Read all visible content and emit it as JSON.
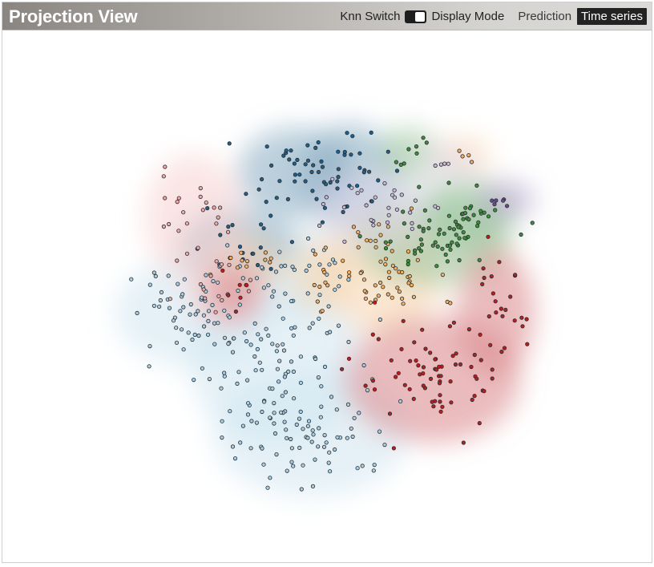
{
  "panel": {
    "title": "Projection View",
    "knn_label": "Knn Switch",
    "knn_on": true,
    "display_mode_label": "Display Mode",
    "modes": [
      "Prediction",
      "Time series"
    ],
    "active_mode": "Time series"
  },
  "chart_data": {
    "type": "scatter",
    "title": "",
    "xlabel": "",
    "ylabel": "",
    "xlim": [
      0,
      100
    ],
    "ylim": [
      0,
      100
    ],
    "axes_visible": false,
    "grid": false,
    "density_contours": true,
    "series": [
      {
        "color": "#a9cfe6",
        "clusters": [
          {
            "cx": 21,
            "cy": 48,
            "sx": 7,
            "sy": 5,
            "n": 55
          },
          {
            "cx": 38,
            "cy": 37,
            "sx": 8,
            "sy": 8,
            "n": 90
          },
          {
            "cx": 45,
            "cy": 21,
            "sx": 9,
            "sy": 6,
            "n": 70
          },
          {
            "cx": 41,
            "cy": 57,
            "sx": 5,
            "sy": 4,
            "n": 30
          }
        ]
      },
      {
        "color": "#1f5f8b",
        "clusters": [
          {
            "cx": 42,
            "cy": 79,
            "sx": 5,
            "sy": 4,
            "n": 35
          },
          {
            "cx": 53,
            "cy": 78,
            "sx": 4,
            "sy": 5,
            "n": 30
          },
          {
            "cx": 30,
            "cy": 63,
            "sx": 5,
            "sy": 3,
            "n": 18
          }
        ]
      },
      {
        "color": "#f3b066",
        "clusters": [
          {
            "cx": 60,
            "cy": 57,
            "sx": 5,
            "sy": 6,
            "n": 55
          },
          {
            "cx": 32,
            "cy": 59,
            "sx": 3,
            "sy": 2,
            "n": 12
          },
          {
            "cx": 47,
            "cy": 56,
            "sx": 2,
            "sy": 3,
            "n": 10
          },
          {
            "cx": 76,
            "cy": 83,
            "sx": 2,
            "sy": 1,
            "n": 4
          }
        ]
      },
      {
        "color": "#3e8e41",
        "clusters": [
          {
            "cx": 70,
            "cy": 64,
            "sx": 7,
            "sy": 4,
            "n": 55
          },
          {
            "cx": 77,
            "cy": 70,
            "sx": 4,
            "sy": 3,
            "n": 20
          },
          {
            "cx": 65,
            "cy": 83,
            "sx": 2,
            "sy": 2,
            "n": 8
          }
        ]
      },
      {
        "color": "#c9b9dc",
        "clusters": [
          {
            "cx": 58,
            "cy": 71,
            "sx": 5,
            "sy": 3,
            "n": 30
          },
          {
            "cx": 73,
            "cy": 81,
            "sx": 2,
            "sy": 1,
            "n": 4
          }
        ]
      },
      {
        "color": "#6b4797",
        "clusters": [
          {
            "cx": 85,
            "cy": 73,
            "sx": 2,
            "sy": 1,
            "n": 6
          }
        ]
      },
      {
        "color": "#f1a8a8",
        "clusters": [
          {
            "cx": 21,
            "cy": 69,
            "sx": 4,
            "sy": 6,
            "n": 25
          },
          {
            "cx": 28,
            "cy": 53,
            "sx": 3,
            "sy": 3,
            "n": 12
          }
        ]
      },
      {
        "color": "#b81e24",
        "clusters": [
          {
            "cx": 70,
            "cy": 33,
            "sx": 8,
            "sy": 6,
            "n": 70
          },
          {
            "cx": 83,
            "cy": 48,
            "sx": 3,
            "sy": 6,
            "n": 25
          },
          {
            "cx": 29,
            "cy": 52,
            "sx": 2,
            "sy": 2,
            "n": 6
          }
        ]
      }
    ]
  }
}
